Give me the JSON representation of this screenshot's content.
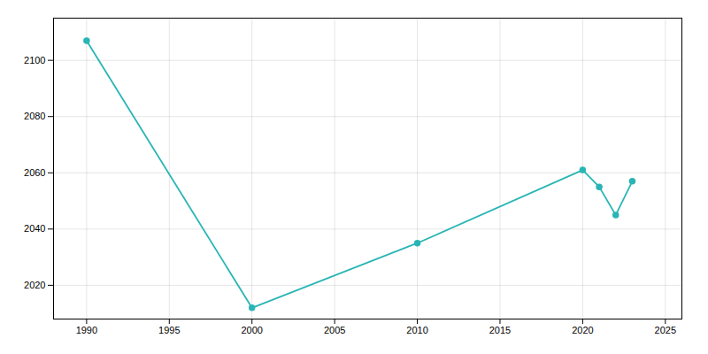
{
  "chart_data": {
    "type": "line",
    "x": [
      1990,
      2000,
      2010,
      2020,
      2021,
      2022,
      2023
    ],
    "values": [
      2107,
      2012,
      2035,
      2061,
      2055,
      2045,
      2057
    ],
    "color": "#2ab5b5",
    "marker": "circle",
    "xlim": [
      1988,
      2026
    ],
    "ylim": [
      2008,
      2115
    ],
    "xticks": [
      1990,
      1995,
      2000,
      2005,
      2010,
      2015,
      2020,
      2025
    ],
    "yticks": [
      2020,
      2040,
      2060,
      2080,
      2100
    ],
    "grid": true
  }
}
